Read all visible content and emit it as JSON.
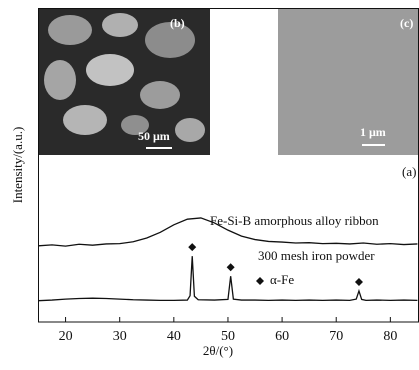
{
  "chart_data": {
    "type": "line",
    "x_label": "2θ/(°)",
    "y_label": "Intensity/(a.u.)",
    "panel_label": "(a)",
    "xlim": [
      15,
      85.2
    ],
    "ylim": [
      0,
      100
    ],
    "xticks": [
      20,
      30,
      40,
      50,
      60,
      70,
      80
    ],
    "series": [
      {
        "name": "Fe-Si-B amorphous alloy ribbon",
        "color": "#111111",
        "x": [
          15,
          17.5,
          20,
          22.5,
          25,
          27.5,
          30,
          32.5,
          35,
          37.5,
          40,
          42.5,
          45,
          47.5,
          50,
          52.5,
          55,
          57.5,
          60,
          62.5,
          65,
          67.5,
          70,
          72.5,
          75,
          77.5,
          80,
          82.5,
          85
        ],
        "values": [
          24.3,
          24.6,
          24.2,
          24.8,
          24.5,
          24.9,
          25.0,
          25.6,
          26.8,
          28.6,
          31.0,
          32.8,
          33.2,
          31.6,
          29.3,
          27.4,
          26.3,
          25.7,
          25.5,
          25.2,
          25.3,
          25.0,
          25.1,
          24.9,
          25.2,
          24.8,
          25.0,
          24.7,
          24.9
        ]
      },
      {
        "name": "300 mesh iron powder",
        "color": "#111111",
        "marked_points": [
          13,
          18,
          30
        ],
        "x": [
          15,
          17.5,
          20,
          22.5,
          25,
          27.5,
          30,
          32.5,
          35,
          37.5,
          40,
          42.5,
          43,
          43.4,
          43.8,
          44.5,
          47.5,
          50,
          50.5,
          51,
          52.5,
          55,
          57.5,
          60,
          62.5,
          65,
          67.5,
          70,
          72.5,
          73.7,
          74.2,
          74.7,
          75.5,
          77.5,
          80,
          82.5,
          85
        ],
        "values": [
          6.8,
          7.0,
          7.3,
          7.5,
          7.6,
          7.5,
          7.3,
          7.1,
          7.0,
          6.9,
          6.9,
          7.0,
          8.4,
          21.0,
          8.2,
          7.1,
          7.0,
          7.2,
          14.6,
          7.3,
          7.0,
          7.0,
          6.9,
          7.0,
          6.9,
          7.0,
          6.9,
          7.0,
          6.9,
          7.3,
          9.9,
          7.2,
          6.9,
          7.0,
          6.9,
          7.0,
          6.9
        ]
      }
    ],
    "marker_legend": "α-Fe"
  },
  "insets": [
    {
      "label": "(b)",
      "scale": "50 μm"
    },
    {
      "label": "(c)",
      "scale": "1 μm"
    }
  ]
}
